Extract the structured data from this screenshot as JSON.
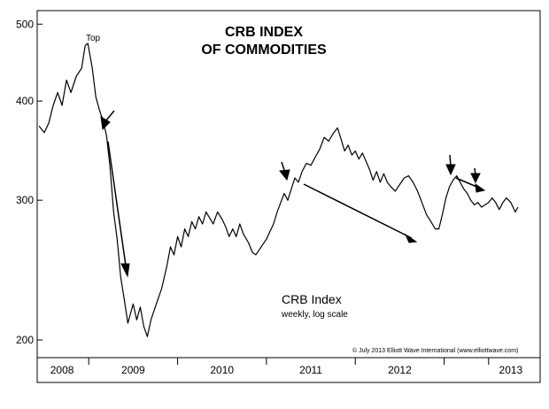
{
  "chart_data": {
    "type": "line",
    "title": [
      "CRB INDEX",
      "OF COMMODITIES"
    ],
    "legend": {
      "label": "CRB Index",
      "sublabel": "weekly, log scale",
      "placement": "center-bottom"
    },
    "annotations": [
      {
        "label": "Top"
      }
    ],
    "copyright": "© July 2013 Elliott Wave International (www.elliottwave.com)",
    "y_axis": {
      "scale": "log",
      "range": [
        190,
        520
      ],
      "ticks": [
        200,
        300,
        400,
        500
      ],
      "tick_labels": [
        "200",
        "300",
        "400",
        "500"
      ],
      "side": "left"
    },
    "x_axis": {
      "range": [
        2007.92,
        2013.58
      ],
      "boundaries": [
        2008.5,
        2009.5,
        2010.5,
        2011.5,
        2012.5,
        2013.0
      ],
      "labels": [
        {
          "label": "2008",
          "at": 2008.2
        },
        {
          "label": "2009",
          "at": 2009.0
        },
        {
          "label": "2010",
          "at": 2010.0
        },
        {
          "label": "2011",
          "at": 2011.0
        },
        {
          "label": "2012",
          "at": 2012.0
        },
        {
          "label": "2013",
          "at": 2013.25
        }
      ]
    },
    "series": [
      {
        "name": "CRB Index",
        "points": [
          [
            2007.94,
            372
          ],
          [
            2008.0,
            365
          ],
          [
            2008.05,
            375
          ],
          [
            2008.1,
            395
          ],
          [
            2008.15,
            410
          ],
          [
            2008.2,
            395
          ],
          [
            2008.25,
            425
          ],
          [
            2008.3,
            410
          ],
          [
            2008.36,
            430
          ],
          [
            2008.42,
            440
          ],
          [
            2008.46,
            470
          ],
          [
            2008.49,
            473
          ],
          [
            2008.54,
            440
          ],
          [
            2008.58,
            405
          ],
          [
            2008.62,
            390
          ],
          [
            2008.66,
            378
          ],
          [
            2008.7,
            362
          ],
          [
            2008.74,
            330
          ],
          [
            2008.78,
            290
          ],
          [
            2008.82,
            268
          ],
          [
            2008.86,
            240
          ],
          [
            2008.9,
            225
          ],
          [
            2008.94,
            210
          ],
          [
            2008.97,
            216
          ],
          [
            2009.0,
            222
          ],
          [
            2009.04,
            212
          ],
          [
            2009.08,
            220
          ],
          [
            2009.12,
            208
          ],
          [
            2009.16,
            202
          ],
          [
            2009.2,
            212
          ],
          [
            2009.26,
            222
          ],
          [
            2009.32,
            232
          ],
          [
            2009.38,
            248
          ],
          [
            2009.42,
            262
          ],
          [
            2009.46,
            256
          ],
          [
            2009.5,
            270
          ],
          [
            2009.54,
            262
          ],
          [
            2009.58,
            276
          ],
          [
            2009.62,
            270
          ],
          [
            2009.66,
            282
          ],
          [
            2009.7,
            276
          ],
          [
            2009.74,
            286
          ],
          [
            2009.78,
            280
          ],
          [
            2009.82,
            290
          ],
          [
            2009.86,
            285
          ],
          [
            2009.9,
            280
          ],
          [
            2009.95,
            290
          ],
          [
            2010.0,
            284
          ],
          [
            2010.04,
            278
          ],
          [
            2010.08,
            270
          ],
          [
            2010.12,
            276
          ],
          [
            2010.16,
            270
          ],
          [
            2010.2,
            280
          ],
          [
            2010.24,
            272
          ],
          [
            2010.3,
            265
          ],
          [
            2010.34,
            258
          ],
          [
            2010.38,
            256
          ],
          [
            2010.42,
            260
          ],
          [
            2010.46,
            264
          ],
          [
            2010.5,
            268
          ],
          [
            2010.54,
            274
          ],
          [
            2010.58,
            280
          ],
          [
            2010.62,
            290
          ],
          [
            2010.66,
            298
          ],
          [
            2010.7,
            306
          ],
          [
            2010.74,
            300
          ],
          [
            2010.78,
            310
          ],
          [
            2010.82,
            320
          ],
          [
            2010.86,
            316
          ],
          [
            2010.9,
            326
          ],
          [
            2010.95,
            334
          ],
          [
            2011.0,
            332
          ],
          [
            2011.05,
            340
          ],
          [
            2011.1,
            348
          ],
          [
            2011.15,
            360
          ],
          [
            2011.2,
            356
          ],
          [
            2011.25,
            364
          ],
          [
            2011.3,
            370
          ],
          [
            2011.34,
            358
          ],
          [
            2011.38,
            346
          ],
          [
            2011.42,
            352
          ],
          [
            2011.46,
            342
          ],
          [
            2011.5,
            346
          ],
          [
            2011.54,
            338
          ],
          [
            2011.58,
            344
          ],
          [
            2011.62,
            336
          ],
          [
            2011.66,
            328
          ],
          [
            2011.7,
            318
          ],
          [
            2011.74,
            326
          ],
          [
            2011.78,
            316
          ],
          [
            2011.82,
            324
          ],
          [
            2011.86,
            316
          ],
          [
            2011.9,
            312
          ],
          [
            2011.95,
            308
          ],
          [
            2012.0,
            314
          ],
          [
            2012.05,
            320
          ],
          [
            2012.1,
            322
          ],
          [
            2012.15,
            316
          ],
          [
            2012.2,
            308
          ],
          [
            2012.25,
            298
          ],
          [
            2012.3,
            288
          ],
          [
            2012.35,
            282
          ],
          [
            2012.4,
            276
          ],
          [
            2012.44,
            276
          ],
          [
            2012.48,
            288
          ],
          [
            2012.52,
            302
          ],
          [
            2012.56,
            312
          ],
          [
            2012.6,
            318
          ],
          [
            2012.64,
            322
          ],
          [
            2012.68,
            316
          ],
          [
            2012.72,
            310
          ],
          [
            2012.76,
            306
          ],
          [
            2012.8,
            300
          ],
          [
            2012.84,
            296
          ],
          [
            2012.88,
            298
          ],
          [
            2012.92,
            294
          ],
          [
            2012.96,
            296
          ],
          [
            2013.0,
            298
          ],
          [
            2013.04,
            302
          ],
          [
            2013.08,
            298
          ],
          [
            2013.12,
            292
          ],
          [
            2013.16,
            298
          ],
          [
            2013.2,
            302
          ],
          [
            2013.25,
            298
          ],
          [
            2013.3,
            290
          ],
          [
            2013.33,
            294
          ]
        ]
      }
    ]
  }
}
